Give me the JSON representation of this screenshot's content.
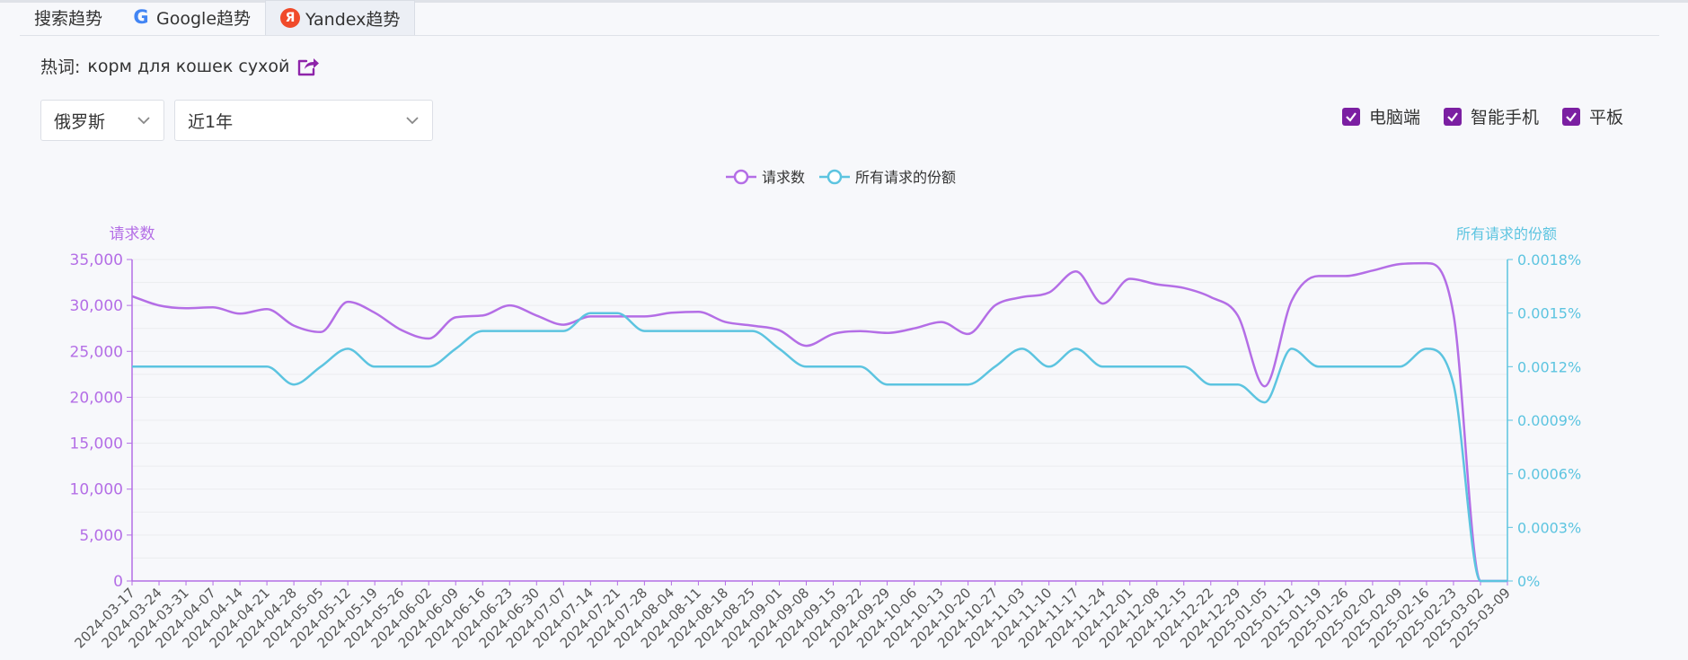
{
  "tabs": [
    {
      "label": "搜索趋势",
      "icon": ""
    },
    {
      "label": "Google趋势",
      "icon": "google-logo-icon"
    },
    {
      "label": "Yandex趋势",
      "icon": "yandex-logo-icon"
    }
  ],
  "active_tab": "Yandex趋势",
  "hotword": {
    "label": "热词:",
    "term": "корм для кошек сухой"
  },
  "filters": {
    "region": "俄罗斯",
    "period": "近1年"
  },
  "devices": [
    {
      "label": "电脑端",
      "checked": true
    },
    {
      "label": "智能手机",
      "checked": true
    },
    {
      "label": "平板",
      "checked": true
    }
  ],
  "colors": {
    "requests": "#b46ee6",
    "share": "#5cc4e0",
    "checkbox": "#7b1fa2"
  },
  "chart_data": {
    "type": "line",
    "legend_position": "top-center",
    "grid": true,
    "yaxis_left": {
      "label": "请求数",
      "ylim": [
        0,
        35000
      ],
      "ticks": [
        "0",
        "5,000",
        "10,000",
        "15,000",
        "20,000",
        "25,000",
        "30,000",
        "35,000"
      ]
    },
    "yaxis_right": {
      "label": "所有请求的份额",
      "ylim": [
        0,
        0.0018
      ],
      "ticks": [
        "0%",
        "0.0003%",
        "0.0006%",
        "0.0009%",
        "0.0012%",
        "0.0015%",
        "0.0018%"
      ]
    },
    "x": [
      "2024-03-17",
      "2024-03-24",
      "2024-03-31",
      "2024-04-07",
      "2024-04-14",
      "2024-04-21",
      "2024-04-28",
      "2024-05-05",
      "2024-05-12",
      "2024-05-19",
      "2024-05-26",
      "2024-06-02",
      "2024-06-09",
      "2024-06-16",
      "2024-06-23",
      "2024-06-30",
      "2024-07-07",
      "2024-07-14",
      "2024-07-21",
      "2024-07-28",
      "2024-08-04",
      "2024-08-11",
      "2024-08-18",
      "2024-08-25",
      "2024-09-01",
      "2024-09-08",
      "2024-09-15",
      "2024-09-22",
      "2024-09-29",
      "2024-10-06",
      "2024-10-13",
      "2024-10-20",
      "2024-10-27",
      "2024-11-03",
      "2024-11-10",
      "2024-11-17",
      "2024-11-24",
      "2024-12-01",
      "2024-12-08",
      "2024-12-15",
      "2024-12-22",
      "2024-12-29",
      "2025-01-05",
      "2025-01-12",
      "2025-01-19",
      "2025-01-26",
      "2025-02-02",
      "2025-02-09",
      "2025-02-16",
      "2025-02-23",
      "2025-03-02",
      "2025-03-09"
    ],
    "series": [
      {
        "name": "请求数",
        "axis": "left",
        "values": [
          31000,
          30000,
          29700,
          29800,
          29100,
          29600,
          27800,
          27100,
          30400,
          29200,
          27300,
          26400,
          28700,
          28900,
          30000,
          28900,
          27900,
          28800,
          28800,
          28800,
          29200,
          29300,
          28200,
          27800,
          27300,
          25600,
          26900,
          27200,
          27000,
          27500,
          28200,
          26900,
          30000,
          30900,
          31400,
          33700,
          30200,
          32900,
          32300,
          31900,
          30900,
          28900,
          21200,
          30500,
          33200,
          33200,
          33800,
          34500,
          34600,
          29000,
          0,
          0
        ]
      },
      {
        "name": "所有请求的份额",
        "axis": "right",
        "values": [
          0.0012,
          0.0012,
          0.0012,
          0.0012,
          0.0012,
          0.0012,
          0.0011,
          0.0012,
          0.0013,
          0.0012,
          0.0012,
          0.0012,
          0.0013,
          0.0014,
          0.0014,
          0.0014,
          0.0014,
          0.0015,
          0.0015,
          0.0014,
          0.0014,
          0.0014,
          0.0014,
          0.0014,
          0.0013,
          0.0012,
          0.0012,
          0.0012,
          0.0011,
          0.0011,
          0.0011,
          0.0011,
          0.0012,
          0.0013,
          0.0012,
          0.0013,
          0.0012,
          0.0012,
          0.0012,
          0.0012,
          0.0011,
          0.0011,
          0.001,
          0.0013,
          0.0012,
          0.0012,
          0.0012,
          0.0012,
          0.0013,
          0.0011,
          0,
          0
        ]
      }
    ]
  }
}
